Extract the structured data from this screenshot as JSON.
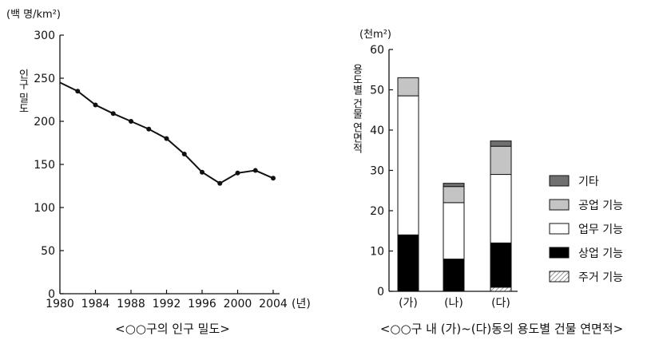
{
  "chart_data": [
    {
      "type": "line",
      "caption": "<○○구의 인구 밀도>",
      "unit": "(백 명/km²)",
      "ylabel": "인구 밀도",
      "xlabel_suffix": "(년)",
      "ylim": [
        0,
        300
      ],
      "xlim": [
        1980,
        2004
      ],
      "yticks": [
        "0",
        "50",
        "100",
        "150",
        "200",
        "250",
        "300"
      ],
      "xticks": [
        "1980",
        "1984",
        "1988",
        "1992",
        "1996",
        "2000",
        "2004"
      ],
      "x": [
        1980,
        1982,
        1984,
        1986,
        1988,
        1990,
        1992,
        1994,
        1996,
        1998,
        2000,
        2002,
        2004
      ],
      "y": [
        245,
        235,
        219,
        209,
        200,
        191,
        180,
        162,
        141,
        128,
        140,
        143,
        134
      ]
    },
    {
      "type": "bar",
      "stacked": true,
      "caption": "<○○구 내 (가)~(다)동의 용도별 건물 연면적>",
      "unit": "(천m²)",
      "ylabel": "용도별 건물 연면적",
      "ylim": [
        0,
        60
      ],
      "yticks": [
        "0",
        "10",
        "20",
        "30",
        "40",
        "50",
        "60"
      ],
      "categories": [
        "(가)",
        "(나)",
        "(다)"
      ],
      "series": [
        {
          "name": "주거 기능",
          "values": [
            0,
            0,
            1
          ],
          "color": "#d8d8d8",
          "pattern": "hatch"
        },
        {
          "name": "상업 기능",
          "values": [
            14,
            8,
            11
          ],
          "color": "#000000"
        },
        {
          "name": "업무 기능",
          "values": [
            34.5,
            14,
            17
          ],
          "color": "#ffffff"
        },
        {
          "name": "공업 기능",
          "values": [
            4.5,
            4,
            7
          ],
          "color": "#c4c4c4"
        },
        {
          "name": "기타",
          "values": [
            0,
            0.8,
            1.3
          ],
          "color": "#707070"
        }
      ],
      "legend_order": [
        "기타",
        "공업 기능",
        "업무 기능",
        "상업 기능",
        "주거 기능"
      ]
    }
  ]
}
